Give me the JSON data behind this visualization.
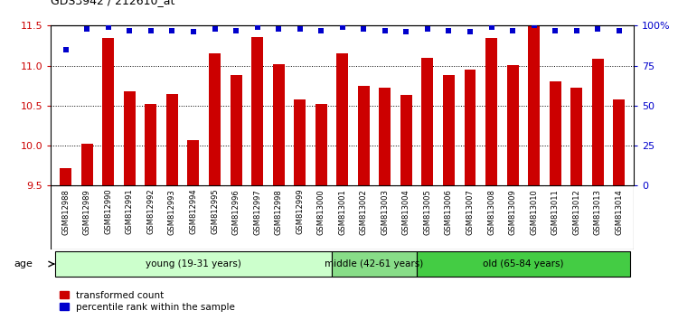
{
  "title": "GDS3942 / 212610_at",
  "samples": [
    "GSM812988",
    "GSM812989",
    "GSM812990",
    "GSM812991",
    "GSM812992",
    "GSM812993",
    "GSM812994",
    "GSM812995",
    "GSM812996",
    "GSM812997",
    "GSM812998",
    "GSM812999",
    "GSM813000",
    "GSM813001",
    "GSM813002",
    "GSM813003",
    "GSM813004",
    "GSM813005",
    "GSM813006",
    "GSM813007",
    "GSM813008",
    "GSM813009",
    "GSM813010",
    "GSM813011",
    "GSM813012",
    "GSM813013",
    "GSM813014"
  ],
  "bar_values": [
    9.72,
    10.02,
    11.35,
    10.68,
    10.52,
    10.65,
    10.07,
    11.15,
    10.88,
    11.36,
    11.02,
    10.58,
    10.52,
    11.15,
    10.75,
    10.72,
    10.63,
    11.1,
    10.88,
    10.95,
    11.35,
    11.01,
    11.5,
    10.8,
    10.72,
    11.08,
    10.58
  ],
  "percentile_values": [
    85,
    98,
    99,
    97,
    97,
    97,
    96,
    98,
    97,
    99,
    98,
    98,
    97,
    99,
    98,
    97,
    96,
    98,
    97,
    96,
    99,
    97,
    100,
    97,
    97,
    98,
    97
  ],
  "bar_color": "#cc0000",
  "blue_color": "#0000cc",
  "ylim_left": [
    9.5,
    11.5
  ],
  "ylim_right": [
    0,
    100
  ],
  "yticks_left": [
    9.5,
    10.0,
    10.5,
    11.0,
    11.5
  ],
  "yticks_right": [
    0,
    25,
    50,
    75,
    100
  ],
  "ytick_labels_right": [
    "0",
    "25",
    "50",
    "75",
    "100%"
  ],
  "groups": [
    {
      "label": "young (19-31 years)",
      "start": 0,
      "end": 13,
      "color": "#ccffcc"
    },
    {
      "label": "middle (42-61 years)",
      "start": 13,
      "end": 17,
      "color": "#88dd88"
    },
    {
      "label": "old (65-84 years)",
      "start": 17,
      "end": 27,
      "color": "#44cc44"
    }
  ],
  "legend_items": [
    {
      "color": "#cc0000",
      "label": "transformed count"
    },
    {
      "color": "#0000cc",
      "label": "percentile rank within the sample"
    }
  ],
  "age_label": "age",
  "background_color": "#ffffff",
  "bar_width": 0.55,
  "ybase": 9.5
}
